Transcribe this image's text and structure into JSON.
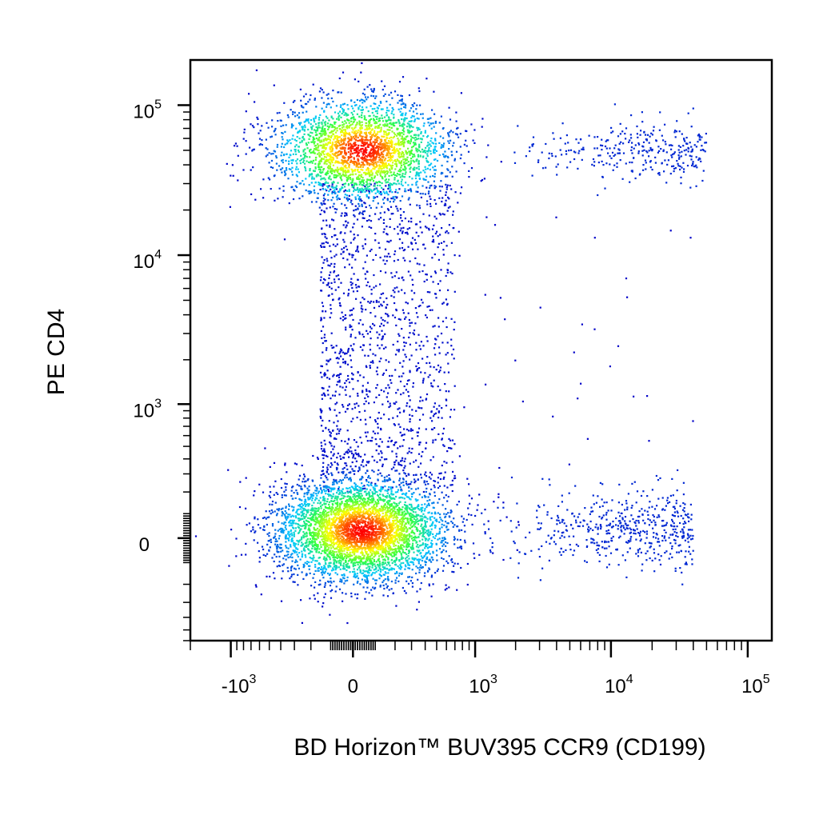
{
  "chart_data": {
    "type": "scatter",
    "title": "",
    "xlabel": "BD Horizon™ BUV395 CCR9 (CD199)",
    "ylabel": "PE CD4",
    "x_scale": "biexponential",
    "y_scale": "biexponential",
    "xlim": [
      -2000,
      150000
    ],
    "ylim": [
      -600,
      200000
    ],
    "x_ticks": [
      {
        "value": -1000,
        "base": "-10",
        "exp": "3"
      },
      {
        "value": 0,
        "base": "0",
        "exp": ""
      },
      {
        "value": 1000,
        "base": "10",
        "exp": "3"
      },
      {
        "value": 10000,
        "base": "10",
        "exp": "4"
      },
      {
        "value": 100000,
        "base": "10",
        "exp": "5"
      }
    ],
    "y_ticks": [
      {
        "value": 0,
        "base": "0",
        "exp": ""
      },
      {
        "value": 1000,
        "base": "10",
        "exp": "3"
      },
      {
        "value": 10000,
        "base": "10",
        "exp": "4"
      },
      {
        "value": 100000,
        "base": "10",
        "exp": "5"
      }
    ],
    "color_scale": [
      "#0000c8",
      "#00c8ff",
      "#30ff40",
      "#ffff00",
      "#ff0000"
    ],
    "populations": [
      {
        "name": "",
        "x_center": 40,
        "y_center": 50000,
        "x_spread": 1.0,
        "y_spread": 0.55,
        "events": 2600
      },
      {
        "name": "",
        "x_center": 40,
        "y_center": 30,
        "x_spread": 1.0,
        "y_spread": 0.55,
        "events": 4200
      },
      {
        "name": "",
        "x_range": [
          -150,
          700
        ],
        "y_range": [
          200,
          30000
        ],
        "events": 1300
      },
      {
        "name": "",
        "x_range": [
          1500,
          50000
        ],
        "y_center": 50000,
        "events": 320
      },
      {
        "name": "",
        "x_range": [
          1000,
          40000
        ],
        "y_center": 30,
        "events": 520
      }
    ],
    "grid": false,
    "legend": "none"
  }
}
